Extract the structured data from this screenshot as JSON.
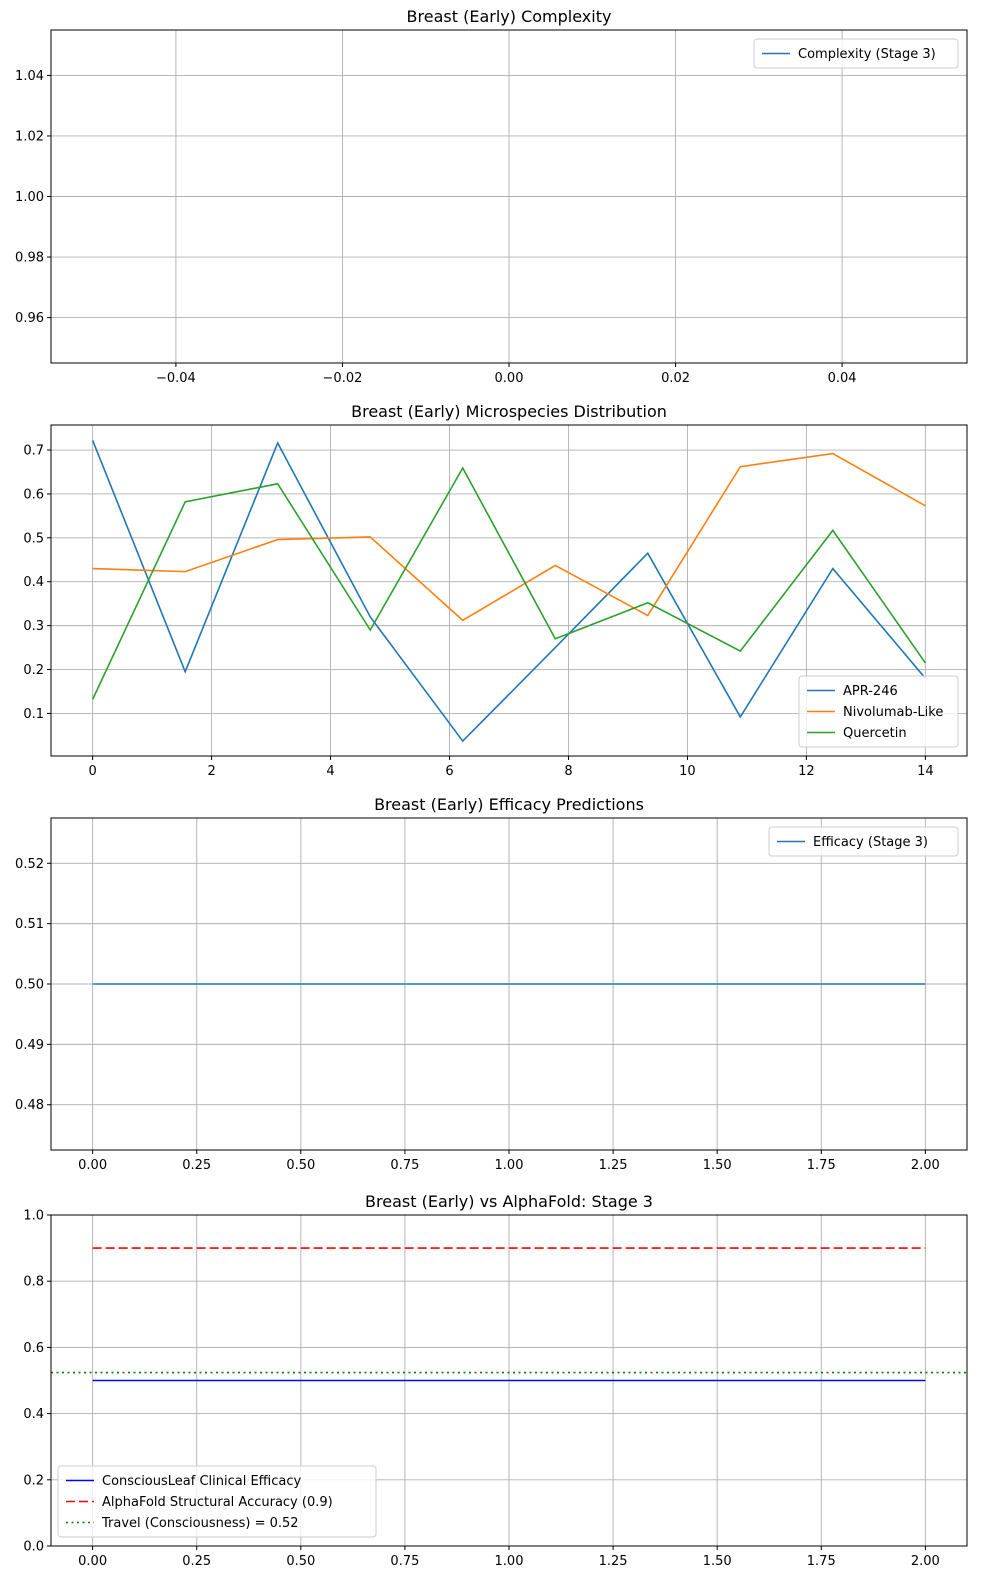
{
  "chart_data": [
    {
      "type": "line",
      "title": "Breast (Early) Complexity",
      "xlabel": "",
      "ylabel": "",
      "xlim": [
        -0.055,
        0.055
      ],
      "ylim": [
        0.945,
        1.055
      ],
      "xticks": [
        -0.04,
        -0.02,
        0.0,
        0.02,
        0.04
      ],
      "xtick_labels": [
        "−0.04",
        "−0.02",
        "0.00",
        "0.02",
        "0.04"
      ],
      "yticks": [
        0.96,
        0.98,
        1.0,
        1.02,
        1.04
      ],
      "ytick_labels": [
        "0.96",
        "0.98",
        "1.00",
        "1.02",
        "1.04"
      ],
      "grid": true,
      "legend_position": "upper right",
      "series": [
        {
          "name": "Complexity (Stage 3)",
          "color": "#1f77b4",
          "style": "solid",
          "x": [],
          "y": []
        }
      ]
    },
    {
      "type": "line",
      "title": "Breast (Early) Microspecies Distribution",
      "xlabel": "",
      "ylabel": "",
      "xlim": [
        -0.7,
        14.7
      ],
      "ylim": [
        0.003,
        0.757
      ],
      "xticks": [
        0,
        2,
        4,
        6,
        8,
        10,
        12,
        14
      ],
      "xtick_labels": [
        "0",
        "2",
        "4",
        "6",
        "8",
        "10",
        "12",
        "14"
      ],
      "yticks": [
        0.1,
        0.2,
        0.3,
        0.4,
        0.5,
        0.6,
        0.7
      ],
      "ytick_labels": [
        "0.1",
        "0.2",
        "0.3",
        "0.4",
        "0.5",
        "0.6",
        "0.7"
      ],
      "grid": true,
      "legend_position": "lower right",
      "series": [
        {
          "name": "APR-246",
          "color": "#1f77b4",
          "style": "solid",
          "x": [
            0,
            1.556,
            3.111,
            4.667,
            6.222,
            7.778,
            9.333,
            10.889,
            12.444,
            14
          ],
          "y": [
            0.722,
            0.195,
            0.716,
            0.32,
            0.037,
            0.25,
            0.465,
            0.092,
            0.43,
            0.18
          ]
        },
        {
          "name": "Nivolumab-Like",
          "color": "#ff7f0e",
          "style": "solid",
          "x": [
            0,
            1.556,
            3.111,
            4.667,
            6.222,
            7.778,
            9.333,
            10.889,
            12.444,
            14
          ],
          "y": [
            0.43,
            0.423,
            0.496,
            0.502,
            0.312,
            0.437,
            0.323,
            0.662,
            0.692,
            0.573
          ]
        },
        {
          "name": "Quercetin",
          "color": "#2ca02c",
          "style": "solid",
          "x": [
            0,
            1.556,
            3.111,
            4.667,
            6.222,
            7.778,
            9.333,
            10.889,
            12.444,
            14
          ],
          "y": [
            0.132,
            0.582,
            0.623,
            0.29,
            0.659,
            0.27,
            0.352,
            0.242,
            0.517,
            0.215
          ]
        }
      ]
    },
    {
      "type": "line",
      "title": "Breast (Early) Efficacy Predictions",
      "xlabel": "",
      "ylabel": "",
      "xlim": [
        -0.1,
        2.1
      ],
      "ylim": [
        0.4725,
        0.5275
      ],
      "xticks": [
        0,
        0.25,
        0.5,
        0.75,
        1.0,
        1.25,
        1.5,
        1.75,
        2.0
      ],
      "xtick_labels": [
        "0.00",
        "0.25",
        "0.50",
        "0.75",
        "1.00",
        "1.25",
        "1.50",
        "1.75",
        "2.00"
      ],
      "yticks": [
        0.48,
        0.49,
        0.5,
        0.51,
        0.52
      ],
      "ytick_labels": [
        "0.48",
        "0.49",
        "0.50",
        "0.51",
        "0.52"
      ],
      "grid": true,
      "legend_position": "upper right",
      "series": [
        {
          "name": "Efficacy (Stage 3)",
          "color": "#1f77b4",
          "style": "solid",
          "x": [
            0,
            1,
            2
          ],
          "y": [
            0.5,
            0.5,
            0.5
          ]
        }
      ]
    },
    {
      "type": "line",
      "title": "Breast (Early) vs AlphaFold: Stage 3",
      "xlabel": "",
      "ylabel": "",
      "xlim": [
        -0.1,
        2.1
      ],
      "ylim": [
        0,
        1
      ],
      "xticks": [
        0,
        0.25,
        0.5,
        0.75,
        1.0,
        1.25,
        1.5,
        1.75,
        2.0
      ],
      "xtick_labels": [
        "0.00",
        "0.25",
        "0.50",
        "0.75",
        "1.00",
        "1.25",
        "1.50",
        "1.75",
        "2.00"
      ],
      "yticks": [
        0,
        0.2,
        0.4,
        0.6,
        0.8,
        1.0
      ],
      "ytick_labels": [
        "0.0",
        "0.2",
        "0.4",
        "0.6",
        "0.8",
        "1.0"
      ],
      "grid": true,
      "legend_position": "lower left",
      "series": [
        {
          "name": "ConsciousLeaf Clinical Efficacy",
          "color": "#0000ff",
          "style": "solid",
          "x": [
            0,
            1,
            2
          ],
          "y": [
            0.5,
            0.5,
            0.5
          ]
        },
        {
          "name": "AlphaFold Structural Accuracy (0.9)",
          "color": "#ff0000",
          "style": "dashed",
          "x": [
            0,
            2
          ],
          "y": [
            0.9,
            0.9
          ]
        },
        {
          "name": "Travel (Consciousness) = 0.52",
          "color": "#008000",
          "style": "dotted",
          "x": [
            -0.1,
            2.1
          ],
          "y": [
            0.524,
            0.524
          ]
        }
      ]
    }
  ]
}
